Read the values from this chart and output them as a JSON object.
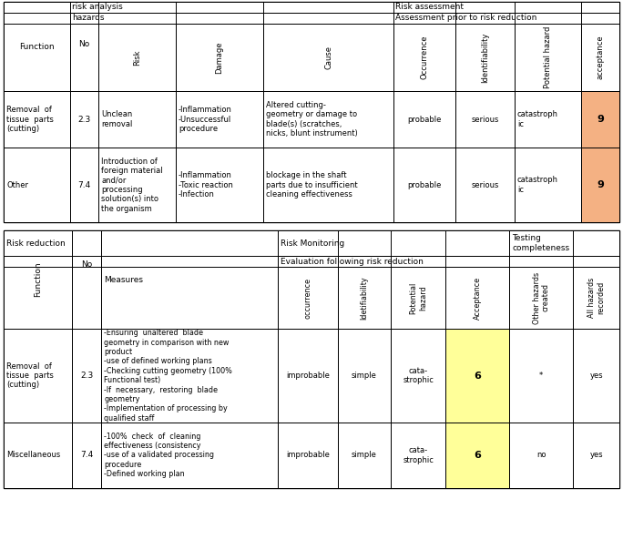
{
  "background_color": "#ffffff",
  "orange_color": "#f4b183",
  "yellow_color": "#ffff99",
  "table1": {
    "rows": [
      {
        "function": "Removal  of\ntissue  parts\n(cutting)",
        "no": "2.3",
        "risk": "Unclean\nremoval",
        "damage": "-Inflammation\n-Unsuccessful\nprocedure",
        "cause": "Altered cutting-\ngeometry or damage to\nblade(s) (scratches,\nnicks, blunt instrument)",
        "occurrence": "probable",
        "identifiability": "serious",
        "potential_hazard": "catastroph\nic",
        "acceptance": "9",
        "acceptance_color": "#f4b183"
      },
      {
        "function": "Other",
        "no": "7.4",
        "risk": "Introduction of\nforeign material\nand/or\nprocessing\nsolution(s) into\nthe organism",
        "damage": "-Inflammation\n-Toxic reaction\n-Infection",
        "cause": "blockage in the shaft\nparts due to insufficient\ncleaning effectiveness",
        "occurrence": "probable",
        "identifiability": "serious",
        "potential_hazard": "catastroph\nic",
        "acceptance": "9",
        "acceptance_color": "#f4b183"
      }
    ]
  },
  "table2": {
    "rows": [
      {
        "function": "Removal  of\ntissue  parts\n(cutting)",
        "no": "2.3",
        "measures": "-Ensuring  unaltered  blade\ngeometry in comparison with new\nproduct\n-use of defined working plans\n-Checking cutting geometry (100%\nFunctional test)\n-If  necessary,  restoring  blade\ngeometry\n-Implementation of processing by\nqualified staff",
        "occurrence": "improbable",
        "identifiability": "simple",
        "potential_hazard": "cata-\nstrophic",
        "acceptance": "6",
        "acceptance_color": "#ffff99",
        "other_hazards": "*",
        "all_hazards": "yes"
      },
      {
        "function": "Miscellaneous",
        "no": "7.4",
        "measures": "-100%  check  of  cleaning\neffectiveness (consistency\n-use of a validated processing\nprocedure\n-Defined working plan",
        "occurrence": "improbable",
        "identifiability": "simple",
        "potential_hazard": "cata-\nstrophic",
        "acceptance": "6",
        "acceptance_color": "#ffff99",
        "other_hazards": "no",
        "all_hazards": "yes"
      }
    ]
  }
}
